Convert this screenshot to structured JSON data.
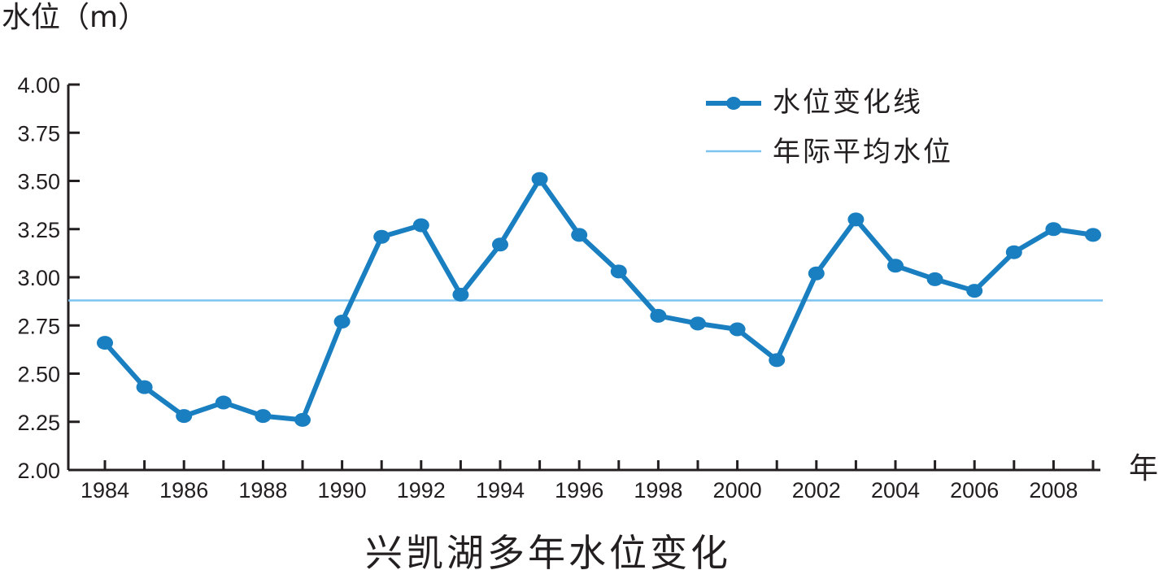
{
  "chart_data": {
    "type": "line",
    "title": "兴凯湖多年水位变化",
    "ylabel": "水位（m）",
    "xlabel": "年",
    "ylim": [
      2.0,
      4.0
    ],
    "y_ticks": [
      "2.00",
      "2.25",
      "2.50",
      "2.75",
      "3.00",
      "3.25",
      "3.50",
      "3.75",
      "4.00"
    ],
    "x_ticks": [
      "1984",
      "1986",
      "1988",
      "1990",
      "1992",
      "1994",
      "1996",
      "1998",
      "2000",
      "2002",
      "2004",
      "2006",
      "2008"
    ],
    "x": [
      1984,
      1985,
      1986,
      1987,
      1988,
      1989,
      1990,
      1991,
      1992,
      1993,
      1994,
      1995,
      1996,
      1997,
      1998,
      1999,
      2000,
      2001,
      2002,
      2003,
      2004,
      2005,
      2006,
      2007,
      2008,
      2009
    ],
    "series": [
      {
        "name": "水位变化线",
        "color": "#1a7fc1",
        "values": [
          2.66,
          2.43,
          2.28,
          2.35,
          2.28,
          2.26,
          2.77,
          3.21,
          3.27,
          2.91,
          3.17,
          3.51,
          3.22,
          3.03,
          2.8,
          2.76,
          2.73,
          2.57,
          3.02,
          3.3,
          3.06,
          2.99,
          2.93,
          3.13,
          3.25,
          3.22
        ]
      }
    ],
    "reference_line": {
      "name": "年际平均水位",
      "value": 2.88,
      "color": "#7cc4ef"
    },
    "legend": "top-right",
    "grid": false
  }
}
